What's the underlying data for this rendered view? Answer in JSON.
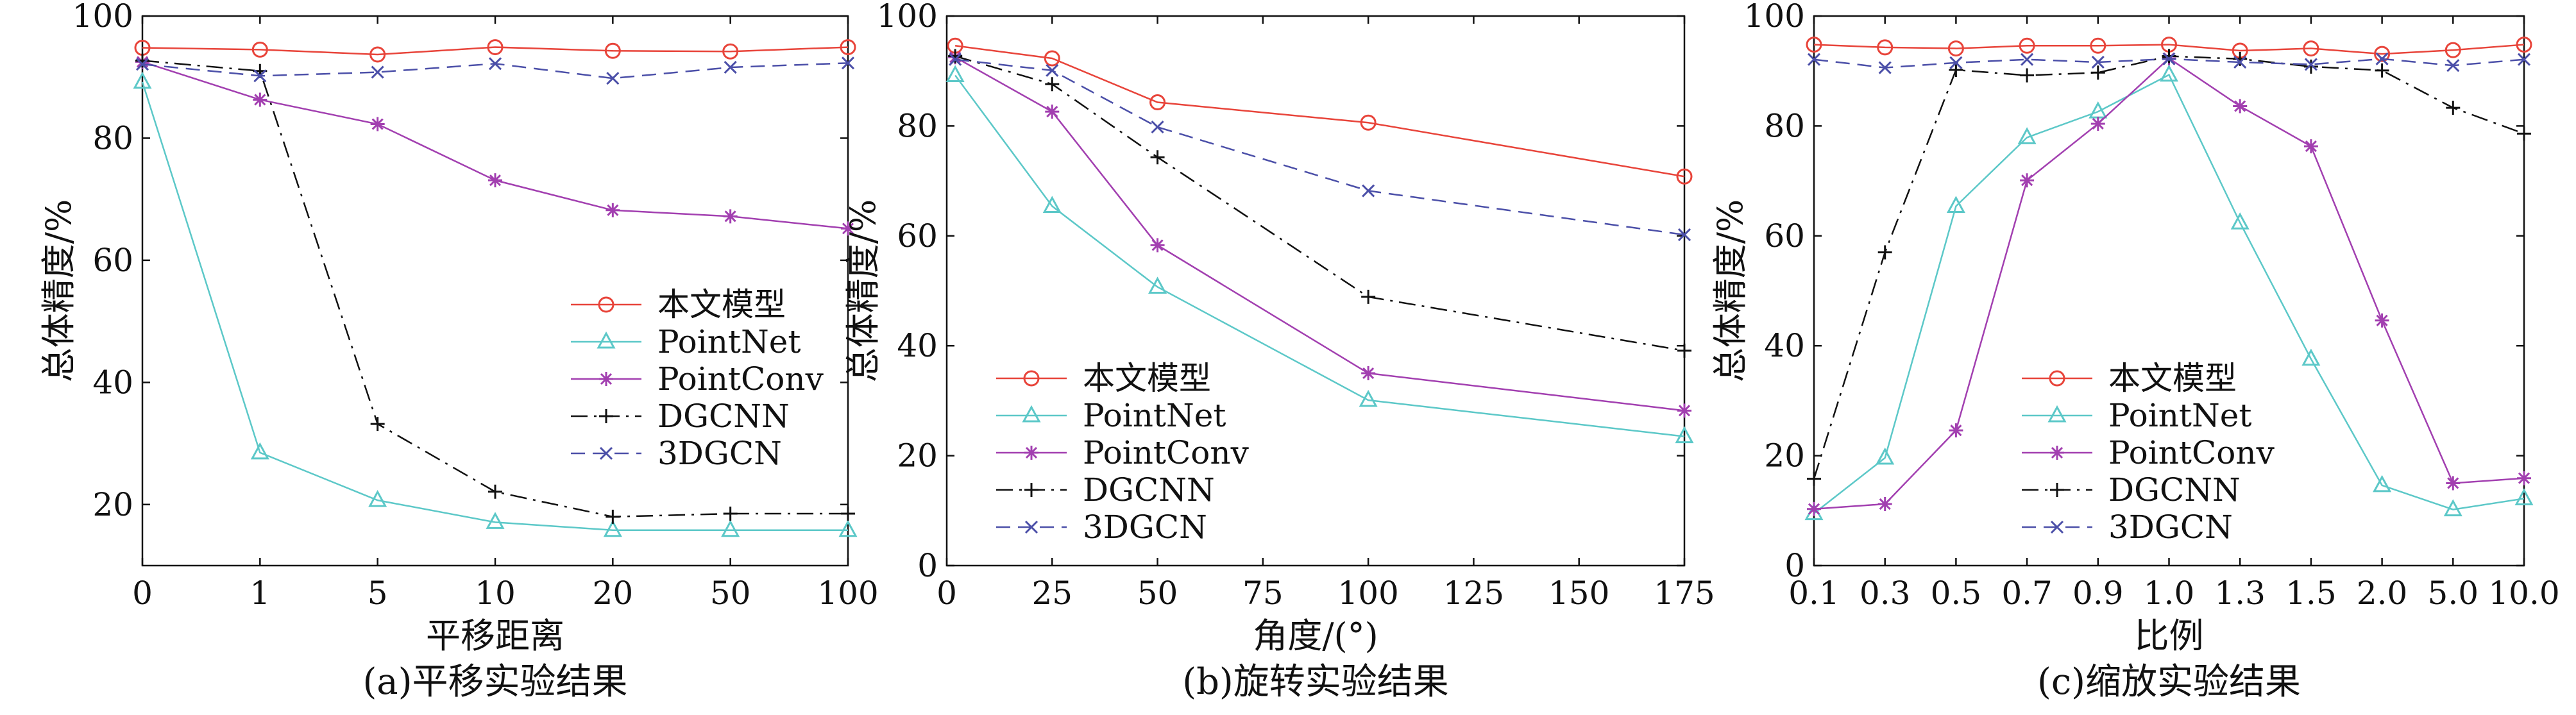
{
  "chart_data": [
    {
      "type": "line",
      "caption": "(a)平移实验结果",
      "xlabel": "平移距离",
      "ylabel": "总体精度/%",
      "x_scale": "categorical",
      "categories": [
        "0",
        "1",
        "5",
        "10",
        "20",
        "50",
        "100"
      ],
      "ylim": [
        10,
        100
      ],
      "yticks": [
        "20",
        "40",
        "60",
        "80",
        "100"
      ],
      "legend_position": "center-right",
      "series": [
        {
          "name": "本文模型",
          "color": "#e8443a",
          "marker": "circle",
          "dash": "solid",
          "values": [
            94.8,
            94.5,
            93.7,
            94.9,
            94.3,
            94.2,
            94.9
          ]
        },
        {
          "name": "PointNet",
          "color": "#5cc8c8",
          "marker": "triangle",
          "dash": "solid",
          "values": [
            89.2,
            28.5,
            20.7,
            17.1,
            15.8,
            15.8,
            15.8
          ]
        },
        {
          "name": "PointConv",
          "color": "#a23fb0",
          "marker": "asterisk",
          "dash": "solid",
          "values": [
            92.5,
            86.3,
            82.3,
            73.1,
            68.2,
            67.2,
            65.2
          ]
        },
        {
          "name": "DGCNN",
          "color": "#111111",
          "marker": "plus",
          "dash": "dashdot",
          "values": [
            92.7,
            91.0,
            33.2,
            22.1,
            18.0,
            18.5,
            18.5
          ]
        },
        {
          "name": "3DGCN",
          "color": "#4b4fa8",
          "marker": "cross",
          "dash": "dashed",
          "values": [
            92.1,
            90.2,
            90.8,
            92.2,
            89.8,
            91.6,
            92.3
          ]
        }
      ]
    },
    {
      "type": "line",
      "caption": "(b)旋转实验结果",
      "xlabel": "角度/(°)",
      "ylabel": "总体精度/%",
      "x_scale": "linear",
      "xlim": [
        0,
        175
      ],
      "xticks": [
        "0",
        "25",
        "50",
        "75",
        "100",
        "125",
        "150",
        "175"
      ],
      "x": [
        2,
        25,
        50,
        100,
        175
      ],
      "ylim": [
        0,
        100
      ],
      "yticks": [
        "0",
        "20",
        "40",
        "60",
        "80",
        "100"
      ],
      "legend_position": "lower-left",
      "series": [
        {
          "name": "本文模型",
          "color": "#e8443a",
          "marker": "circle",
          "dash": "solid",
          "values": [
            94.6,
            92.3,
            84.3,
            80.6,
            70.8
          ]
        },
        {
          "name": "PointNet",
          "color": "#5cc8c8",
          "marker": "triangle",
          "dash": "solid",
          "values": [
            89.2,
            65.4,
            50.7,
            30.1,
            23.5
          ]
        },
        {
          "name": "PointConv",
          "color": "#a23fb0",
          "marker": "asterisk",
          "dash": "solid",
          "values": [
            92.5,
            82.6,
            58.3,
            35.0,
            28.2
          ]
        },
        {
          "name": "DGCNN",
          "color": "#111111",
          "marker": "plus",
          "dash": "dashdot",
          "values": [
            92.7,
            87.6,
            74.3,
            48.9,
            39.1
          ]
        },
        {
          "name": "3DGCN",
          "color": "#4b4fa8",
          "marker": "cross",
          "dash": "dashed",
          "values": [
            92.1,
            90.1,
            79.8,
            68.2,
            60.2
          ]
        }
      ]
    },
    {
      "type": "line",
      "caption": "(c)缩放实验结果",
      "xlabel": "比例",
      "ylabel": "总体精度/%",
      "x_scale": "categorical",
      "categories": [
        "0.1",
        "0.3",
        "0.5",
        "0.7",
        "0.9",
        "1.0",
        "1.3",
        "1.5",
        "2.0",
        "5.0",
        "10.0"
      ],
      "ylim": [
        0,
        100
      ],
      "yticks": [
        "0",
        "20",
        "40",
        "60",
        "80",
        "100"
      ],
      "legend_position": "lower-center",
      "series": [
        {
          "name": "本文模型",
          "color": "#e8443a",
          "marker": "circle",
          "dash": "solid",
          "values": [
            94.8,
            94.3,
            94.1,
            94.6,
            94.6,
            94.8,
            93.7,
            94.1,
            93.1,
            93.8,
            94.8
          ]
        },
        {
          "name": "PointNet",
          "color": "#5cc8c8",
          "marker": "triangle",
          "dash": "solid",
          "values": [
            9.5,
            19.6,
            65.4,
            77.9,
            82.6,
            89.3,
            62.4,
            37.6,
            14.6,
            10.2,
            12.2
          ]
        },
        {
          "name": "PointConv",
          "color": "#a23fb0",
          "marker": "asterisk",
          "dash": "solid",
          "values": [
            10.3,
            11.2,
            24.6,
            70.1,
            80.4,
            92.3,
            83.6,
            76.3,
            44.6,
            15.0,
            15.9
          ]
        },
        {
          "name": "DGCNN",
          "color": "#111111",
          "marker": "plus",
          "dash": "dashdot",
          "values": [
            15.8,
            57.0,
            90.2,
            89.2,
            89.7,
            92.7,
            92.2,
            90.8,
            90.1,
            83.3,
            78.6
          ]
        },
        {
          "name": "3DGCN",
          "color": "#4b4fa8",
          "marker": "cross",
          "dash": "dashed",
          "values": [
            92.1,
            90.6,
            91.5,
            92.1,
            91.6,
            92.2,
            91.6,
            91.2,
            92.2,
            91.0,
            92.1
          ]
        }
      ]
    }
  ]
}
